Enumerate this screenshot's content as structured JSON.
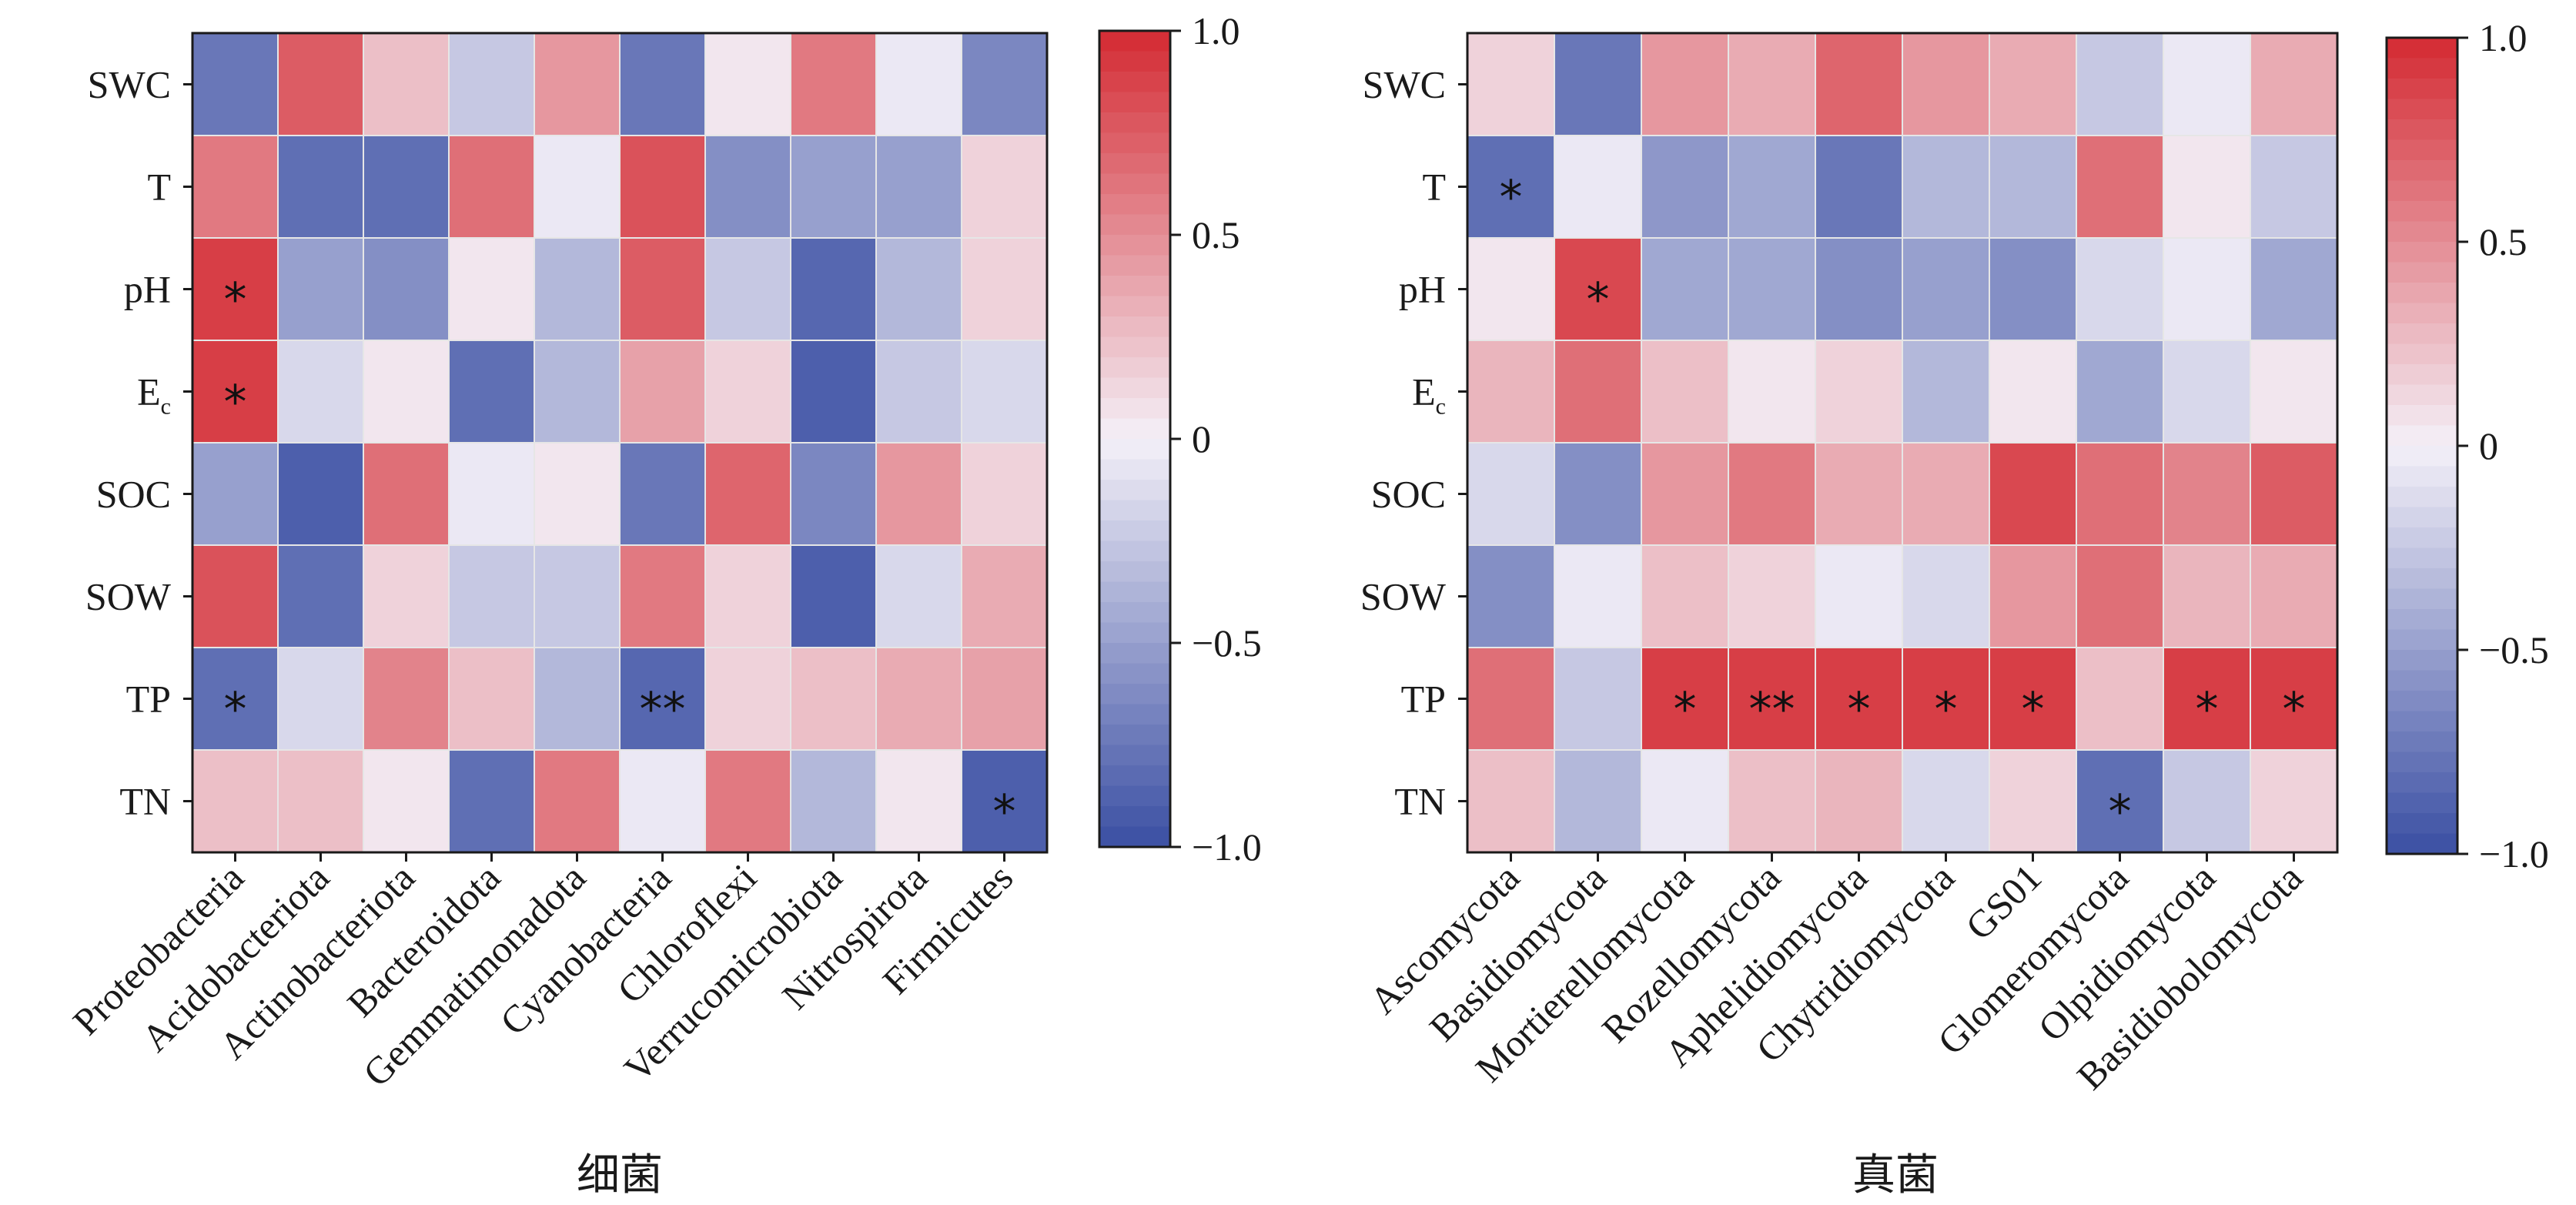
{
  "chart_data": [
    {
      "type": "heatmap",
      "xlabel": "细菌",
      "rows": [
        "SWC",
        "T",
        "pH",
        "E_c",
        "SOC",
        "SOW",
        "TP",
        "TN"
      ],
      "columns": [
        "Proteobacteria",
        "Acidobacteriota",
        "Actinobacteriota",
        "Bacteroidota",
        "Gemmatimonadota",
        "Cyanobacteria",
        "Chloroflexi",
        "Verrucomicrobiota",
        "Nitrospirota",
        "Firmicutes"
      ],
      "values": [
        [
          -0.75,
          0.75,
          0.25,
          -0.25,
          0.45,
          -0.75,
          0.05,
          0.6,
          -0.05,
          -0.65
        ],
        [
          0.6,
          -0.8,
          -0.8,
          0.65,
          -0.05,
          0.8,
          -0.6,
          -0.5,
          -0.5,
          0.15
        ],
        [
          0.9,
          -0.5,
          -0.6,
          0.05,
          -0.35,
          0.75,
          -0.25,
          -0.85,
          -0.35,
          0.15
        ],
        [
          0.9,
          -0.15,
          0.05,
          -0.8,
          -0.35,
          0.4,
          0.15,
          -0.9,
          -0.25,
          -0.15
        ],
        [
          -0.5,
          -0.9,
          0.65,
          -0.05,
          0.05,
          -0.75,
          0.7,
          -0.65,
          0.45,
          0.15
        ],
        [
          0.8,
          -0.8,
          0.15,
          -0.25,
          -0.25,
          0.6,
          0.15,
          -0.9,
          -0.15,
          0.35
        ],
        [
          -0.8,
          -0.15,
          0.55,
          0.25,
          -0.35,
          -0.85,
          0.15,
          0.25,
          0.35,
          0.4
        ],
        [
          0.25,
          0.25,
          0.05,
          -0.8,
          0.6,
          -0.05,
          0.6,
          -0.35,
          0.05,
          -0.9
        ]
      ],
      "significance": [
        [
          "",
          "",
          "",
          "",
          "",
          "",
          "",
          "",
          "",
          ""
        ],
        [
          "",
          "",
          "",
          "",
          "",
          "",
          "",
          "",
          "",
          ""
        ],
        [
          "*",
          "",
          "",
          "",
          "",
          "",
          "",
          "",
          "",
          ""
        ],
        [
          "*",
          "",
          "",
          "",
          "",
          "",
          "",
          "",
          "",
          ""
        ],
        [
          "",
          "",
          "",
          "",
          "",
          "",
          "",
          "",
          "",
          ""
        ],
        [
          "",
          "",
          "",
          "",
          "",
          "",
          "",
          "",
          "",
          ""
        ],
        [
          "*",
          "",
          "",
          "",
          "",
          "**",
          "",
          "",
          "",
          ""
        ],
        [
          "",
          "",
          "",
          "",
          "",
          "",
          "",
          "",
          "",
          "*"
        ]
      ],
      "colorbar": {
        "range": [
          -1.0,
          1.0
        ],
        "ticks": [
          "1.0",
          "0.5",
          "0",
          "−0.5",
          "−1.0"
        ]
      }
    },
    {
      "type": "heatmap",
      "xlabel": "真菌",
      "rows": [
        "SWC",
        "T",
        "pH",
        "E_c",
        "SOC",
        "SOW",
        "TP",
        "TN"
      ],
      "columns": [
        "Ascomycota",
        "Basidiomycota",
        "Mortierellomycota",
        "Rozellomycota",
        "Aphelidiomycota",
        "Chytridiomycota",
        "GS01",
        "Glomeromycota",
        "Olpidiomycota",
        "Basidiobolomycota"
      ],
      "values": [
        [
          0.15,
          -0.75,
          0.45,
          0.35,
          0.7,
          0.45,
          0.35,
          -0.25,
          -0.05,
          0.35
        ],
        [
          -0.8,
          -0.05,
          -0.55,
          -0.45,
          -0.75,
          -0.35,
          -0.35,
          0.65,
          0.05,
          -0.25
        ],
        [
          0.05,
          0.85,
          -0.45,
          -0.45,
          -0.6,
          -0.5,
          -0.6,
          -0.15,
          -0.05,
          -0.45
        ],
        [
          0.3,
          0.65,
          0.25,
          0.05,
          0.15,
          -0.35,
          0.05,
          -0.45,
          -0.15,
          0.05
        ],
        [
          -0.15,
          -0.6,
          0.45,
          0.6,
          0.35,
          0.35,
          0.85,
          0.65,
          0.55,
          0.75
        ],
        [
          -0.6,
          -0.05,
          0.25,
          0.15,
          -0.05,
          -0.15,
          0.45,
          0.65,
          0.3,
          0.35
        ],
        [
          0.65,
          -0.25,
          0.9,
          0.9,
          0.9,
          0.9,
          0.9,
          0.25,
          0.9,
          0.9
        ],
        [
          0.25,
          -0.35,
          -0.05,
          0.25,
          0.3,
          -0.15,
          0.15,
          -0.8,
          -0.25,
          0.15
        ]
      ],
      "significance": [
        [
          "",
          "",
          "",
          "",
          "",
          "",
          "",
          "",
          "",
          ""
        ],
        [
          "*",
          "",
          "",
          "",
          "",
          "",
          "",
          "",
          "",
          ""
        ],
        [
          "",
          "*",
          "",
          "",
          "",
          "",
          "",
          "",
          "",
          ""
        ],
        [
          "",
          "",
          "",
          "",
          "",
          "",
          "",
          "",
          "",
          ""
        ],
        [
          "",
          "",
          "",
          "",
          "",
          "",
          "",
          "",
          "",
          ""
        ],
        [
          "",
          "",
          "",
          "",
          "",
          "",
          "",
          "",
          "",
          ""
        ],
        [
          "",
          "",
          "*",
          "**",
          "*",
          "*",
          "*",
          "",
          "*",
          "*"
        ],
        [
          "",
          "",
          "",
          "",
          "",
          "",
          "",
          "*",
          "",
          ""
        ]
      ],
      "colorbar": {
        "range": [
          -1.0,
          1.0
        ],
        "ticks": [
          "1.0",
          "0.5",
          "0",
          "−0.5",
          "−1.0"
        ]
      }
    }
  ],
  "colors": {
    "negative": "#3a4fa3",
    "neutral": "#f4f0f8",
    "positive": "#d42a32",
    "cell_border": "#e6e6e6",
    "axis": "#1a1a1a"
  }
}
